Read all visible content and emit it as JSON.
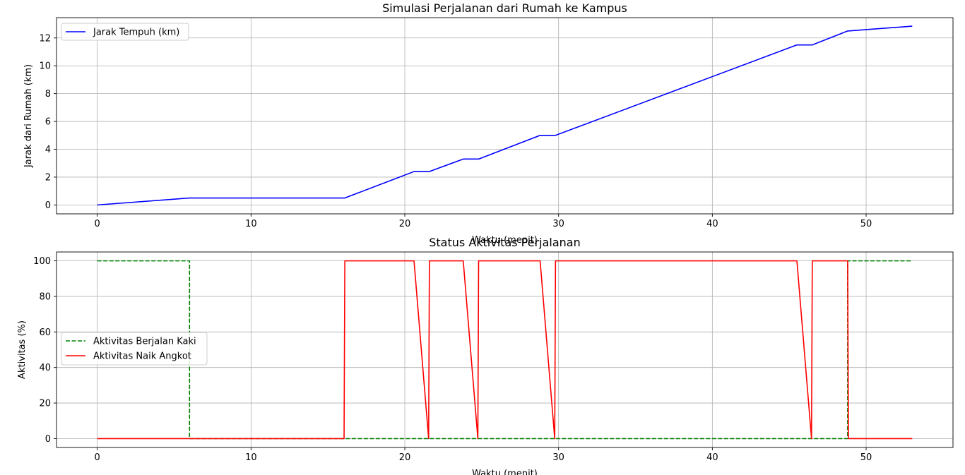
{
  "chart_data": [
    {
      "type": "line",
      "title": "Simulasi Perjalanan dari Rumah ke Kampus",
      "xlabel": "Waktu (menit)",
      "ylabel": "Jarak dari Rumah (km)",
      "xlim": [
        -2.65,
        55.65
      ],
      "ylim": [
        -0.64,
        13.46
      ],
      "xticks": [
        0,
        10,
        20,
        30,
        40,
        50
      ],
      "yticks": [
        0,
        2,
        4,
        6,
        8,
        10,
        12
      ],
      "grid": true,
      "legend_position": "upper left",
      "series": [
        {
          "name": "Jarak Tempuh (km)",
          "color": "#0000ff",
          "style": "solid",
          "x": [
            0,
            6,
            16.1,
            20.6,
            21.6,
            23.8,
            24.8,
            28.8,
            29.8,
            45.5,
            46.5,
            48.8,
            53
          ],
          "y": [
            0,
            0.5,
            0.5,
            2.4,
            2.4,
            3.3,
            3.3,
            5.0,
            5.0,
            11.5,
            11.5,
            12.5,
            12.85
          ]
        }
      ]
    },
    {
      "type": "line",
      "title": "Status Aktivitas Perjalanan",
      "xlabel": "Waktu (menit)",
      "ylabel": "Aktivitas (%)",
      "xlim": [
        -2.65,
        55.65
      ],
      "ylim": [
        -5,
        105
      ],
      "xticks": [
        0,
        10,
        20,
        30,
        40,
        50
      ],
      "yticks": [
        0,
        20,
        40,
        60,
        80,
        100
      ],
      "grid": true,
      "legend_position": "center left",
      "series": [
        {
          "name": "Aktivitas Berjalan Kaki",
          "color": "#008000",
          "style": "dashed",
          "x": [
            0,
            6,
            6,
            48.8,
            48.8,
            53
          ],
          "y": [
            100,
            100,
            0,
            0,
            100,
            100
          ]
        },
        {
          "name": "Aktivitas Naik Angkot",
          "color": "#ff0000",
          "style": "solid",
          "x": [
            0,
            16.05,
            16.1,
            20.6,
            21.55,
            21.6,
            23.8,
            24.75,
            24.8,
            28.8,
            29.75,
            29.8,
            45.5,
            46.45,
            46.5,
            48.8,
            48.85,
            53
          ],
          "y": [
            0,
            0,
            100,
            100,
            0,
            100,
            100,
            0,
            100,
            100,
            0,
            100,
            100,
            0,
            100,
            100,
            0,
            0
          ]
        }
      ]
    }
  ]
}
